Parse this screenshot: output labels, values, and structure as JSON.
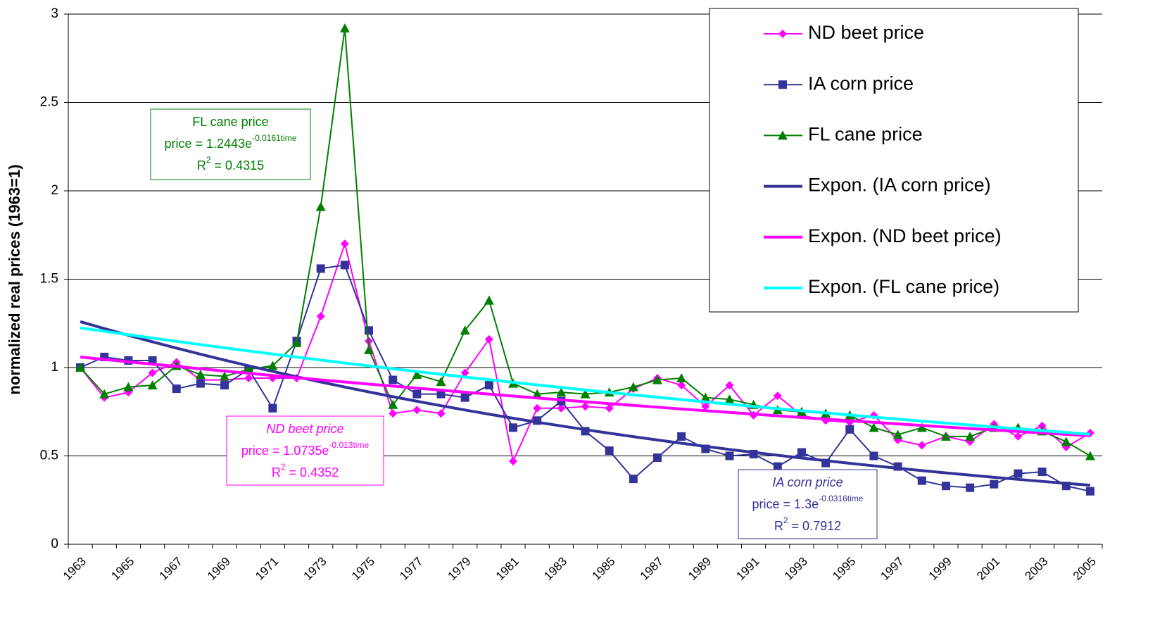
{
  "chart_data": {
    "type": "line",
    "y_label": "normalized real prices (1963=1)",
    "categories": [
      "1963",
      null,
      "1965",
      null,
      "1967",
      null,
      "1969",
      null,
      "1971",
      null,
      "1973",
      null,
      "1975",
      null,
      "1977",
      null,
      "1979",
      null,
      "1981",
      null,
      "1983",
      null,
      "1985",
      null,
      "1987",
      null,
      "1989",
      null,
      "1991",
      null,
      "1993",
      null,
      "1995",
      null,
      "1997",
      null,
      "1999",
      null,
      "2001",
      null,
      "2003",
      null,
      "2005"
    ],
    "ylim": [
      0,
      3
    ],
    "yticks": [
      0,
      0.5,
      1,
      1.5,
      2,
      2.5,
      3
    ],
    "grid": true,
    "legend": "upper right",
    "series": [
      {
        "name": "ND beet price",
        "color": "#FF00FF",
        "marker": "diamond",
        "values": [
          1.0,
          0.83,
          0.86,
          0.97,
          1.03,
          0.93,
          0.93,
          0.94,
          0.94,
          0.94,
          1.29,
          1.7,
          1.15,
          0.74,
          0.76,
          0.74,
          0.97,
          1.16,
          0.47,
          0.77,
          0.77,
          0.78,
          0.77,
          0.88,
          0.94,
          0.9,
          0.78,
          0.9,
          0.73,
          0.84,
          0.73,
          0.7,
          0.69,
          0.73,
          0.59,
          0.56,
          0.61,
          0.58,
          0.68,
          0.61,
          0.67,
          0.55,
          0.63
        ]
      },
      {
        "name": "IA corn price",
        "color": "#333399",
        "marker": "square",
        "values": [
          1.0,
          1.06,
          1.04,
          1.04,
          0.88,
          0.91,
          0.9,
          0.99,
          0.77,
          1.15,
          1.56,
          1.58,
          1.21,
          0.93,
          0.85,
          0.85,
          0.83,
          0.9,
          0.66,
          0.7,
          0.81,
          0.64,
          0.53,
          0.37,
          0.49,
          0.61,
          0.54,
          0.5,
          0.51,
          0.44,
          0.52,
          0.46,
          0.65,
          0.5,
          0.44,
          0.36,
          0.33,
          0.32,
          0.34,
          0.4,
          0.41,
          0.33,
          0.3
        ]
      },
      {
        "name": "FL cane price",
        "color": "#008000",
        "marker": "triangle",
        "values": [
          1.0,
          0.85,
          0.89,
          0.9,
          1.01,
          0.96,
          0.95,
          0.99,
          1.01,
          1.14,
          1.91,
          2.92,
          1.1,
          0.79,
          0.96,
          0.92,
          1.21,
          1.38,
          0.91,
          0.85,
          0.86,
          0.85,
          0.86,
          0.89,
          0.93,
          0.94,
          0.83,
          0.82,
          0.79,
          0.76,
          0.75,
          0.74,
          0.73,
          0.66,
          0.62,
          0.66,
          0.61,
          0.61,
          0.66,
          0.66,
          0.64,
          0.58,
          0.5
        ]
      }
    ],
    "trendlines": [
      {
        "name": "Expon. (IA corn price)",
        "color": "#333399",
        "coef": 1.3,
        "rate": -0.0316,
        "annotation": {
          "title": "IA  corn price",
          "equation": "price = 1.3e",
          "exponent": "-0.0316time",
          "r_symbol": "R",
          "r_power": "2",
          "r2_text": " = 0.7912"
        }
      },
      {
        "name": "Expon. (ND beet price)",
        "color": "#FF00FF",
        "coef": 1.0735,
        "rate": -0.013,
        "annotation": {
          "title": "ND beet price",
          "equation": "price = 1.0735e",
          "exponent": "-0.013time",
          "r_symbol": "R",
          "r_power": "2",
          "r2_text": " = 0.4352"
        }
      },
      {
        "name": "Expon. (FL cane price)",
        "color": "#00FFFF",
        "coef": 1.2443,
        "rate": -0.0161,
        "annotation": {
          "title": "FL cane price",
          "equation": "price = 1.2443e",
          "exponent": "-0.0161time",
          "r_symbol": "R",
          "r_power": "2",
          "r2_text": " = 0.4315"
        }
      }
    ]
  }
}
